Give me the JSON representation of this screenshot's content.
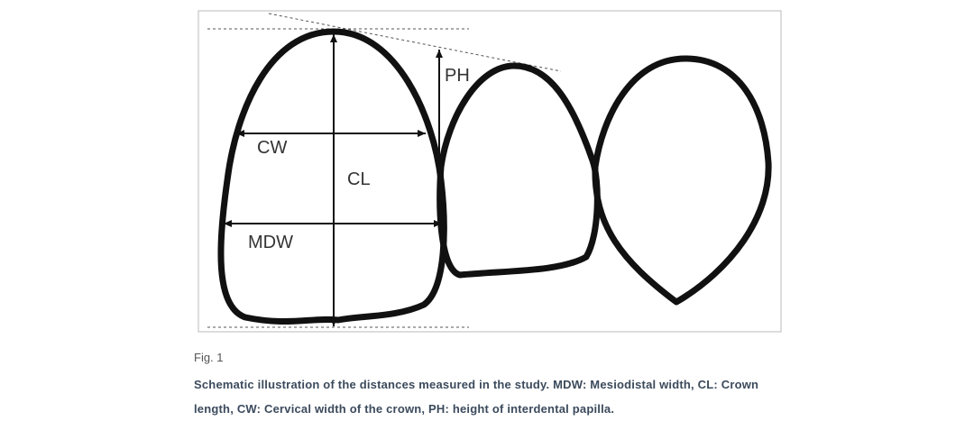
{
  "diagram": {
    "labels": {
      "cw": "CW",
      "cl": "CL",
      "mdw": "MDW",
      "ph": "PH"
    }
  },
  "figure": {
    "label": "Fig. 1",
    "caption": "Schematic illustration of the distances measured in the study. MDW: Mesiodistal width, CL: Crown length, CW: Cervical width of the crown, PH: height of interdental papilla."
  }
}
